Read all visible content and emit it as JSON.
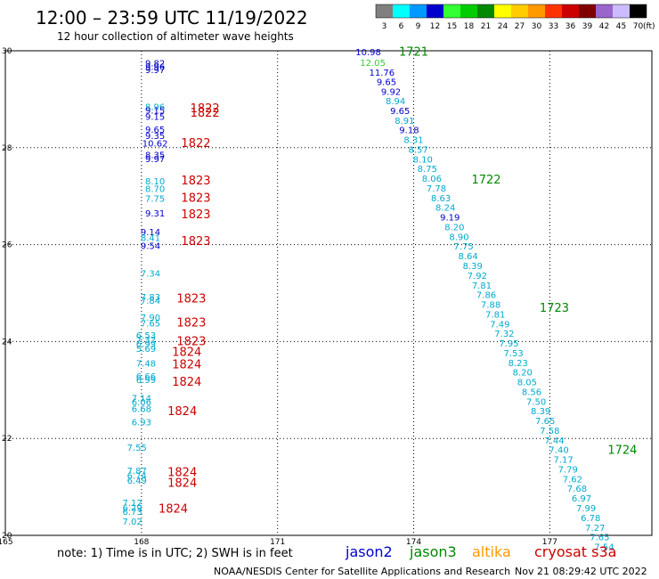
{
  "header": {
    "title": "12:00 – 23:59 UTC 11/19/2022",
    "subtitle": "12 hour collection of altimeter wave heights"
  },
  "color_scale": {
    "bins": [
      {
        "label": "3",
        "color": "#808080"
      },
      {
        "label": "6",
        "color": "#00ffff"
      },
      {
        "label": "9",
        "color": "#0099ff"
      },
      {
        "label": "12",
        "color": "#0000cc"
      },
      {
        "label": "15",
        "color": "#33ff33"
      },
      {
        "label": "18",
        "color": "#00cc00"
      },
      {
        "label": "21",
        "color": "#008800"
      },
      {
        "label": "24",
        "color": "#ffff00"
      },
      {
        "label": "27",
        "color": "#ffcc00"
      },
      {
        "label": "30",
        "color": "#ff9900"
      },
      {
        "label": "33",
        "color": "#ff3300"
      },
      {
        "label": "36",
        "color": "#cc0000"
      },
      {
        "label": "39",
        "color": "#800000"
      },
      {
        "label": "42",
        "color": "#9966cc"
      },
      {
        "label": "45",
        "color": "#ccbbff"
      },
      {
        "label": "70",
        "color": "#000000"
      }
    ],
    "unit": "(ft)"
  },
  "colors": {
    "jason2": "#0000cc",
    "jason3": "#008800",
    "altika": "#ff9900",
    "cryosat": "#cc0000",
    "light_blue": "#00aacc",
    "green_light": "#33cc33"
  },
  "axes": {
    "x_ticks": [
      "165",
      "168",
      "171",
      "174",
      "177"
    ],
    "y_ticks": [
      "30",
      "28",
      "26",
      "24",
      "22",
      "20"
    ]
  },
  "footer": {
    "note": "note: 1) Time is in UTC; 2) SWH is in feet",
    "legend": [
      {
        "label": "jason2",
        "color": "#0000cc"
      },
      {
        "label": "jason3",
        "color": "#008800"
      },
      {
        "label": "altika",
        "color": "#ff9900"
      },
      {
        "label": "cryosat s3a",
        "color": "#cc0000"
      }
    ],
    "credit": "NOAA/NESDIS Center for Satellite Applications and Research",
    "timestamp": "Nov 21 08:29:42 UTC 2022"
  },
  "track_left": {
    "labels": [
      {
        "lon": 168.3,
        "lat": 29.75,
        "value": "9.82",
        "color": "#0000cc"
      },
      {
        "lon": 168.3,
        "lat": 29.68,
        "value": "9.96",
        "color": "#0000cc"
      },
      {
        "lon": 168.3,
        "lat": 29.61,
        "value": "9.97",
        "color": "#0000cc"
      },
      {
        "lon": 168.3,
        "lat": 28.85,
        "value": "8.96",
        "color": "#00aacc"
      },
      {
        "lon": 168.3,
        "lat": 28.78,
        "value": "9.15",
        "color": "#0000cc"
      },
      {
        "lon": 168.3,
        "lat": 28.65,
        "value": "9.15",
        "color": "#0000cc"
      },
      {
        "lon": 168.3,
        "lat": 28.38,
        "value": "9.65",
        "color": "#0000cc"
      },
      {
        "lon": 168.3,
        "lat": 28.25,
        "value": "9.35",
        "color": "#0000cc"
      },
      {
        "lon": 168.3,
        "lat": 28.1,
        "value": "10.62",
        "color": "#0000cc"
      },
      {
        "lon": 168.3,
        "lat": 27.86,
        "value": "8.35",
        "color": "#0000cc"
      },
      {
        "lon": 168.3,
        "lat": 27.78,
        "value": "9.97",
        "color": "#0000cc"
      },
      {
        "lon": 168.3,
        "lat": 27.32,
        "value": "8.10",
        "color": "#00aacc"
      },
      {
        "lon": 168.3,
        "lat": 27.16,
        "value": "8.70",
        "color": "#00aacc"
      },
      {
        "lon": 168.3,
        "lat": 26.96,
        "value": "7.75",
        "color": "#00aacc"
      },
      {
        "lon": 168.3,
        "lat": 26.65,
        "value": "9.31",
        "color": "#0000cc"
      },
      {
        "lon": 168.2,
        "lat": 26.27,
        "value": "9.14",
        "color": "#0000cc"
      },
      {
        "lon": 168.2,
        "lat": 26.15,
        "value": "8.41",
        "color": "#00aacc"
      },
      {
        "lon": 168.2,
        "lat": 25.98,
        "value": "9.54",
        "color": "#0000cc"
      },
      {
        "lon": 168.2,
        "lat": 25.41,
        "value": "7.34",
        "color": "#00aacc"
      },
      {
        "lon": 168.2,
        "lat": 24.93,
        "value": "7.83",
        "color": "#00aacc"
      },
      {
        "lon": 168.2,
        "lat": 24.85,
        "value": "7.84",
        "color": "#00aacc"
      },
      {
        "lon": 168.2,
        "lat": 24.5,
        "value": "7.90",
        "color": "#00aacc"
      },
      {
        "lon": 168.2,
        "lat": 24.38,
        "value": "7.65",
        "color": "#00aacc"
      },
      {
        "lon": 168.1,
        "lat": 24.14,
        "value": "6.53",
        "color": "#00aacc"
      },
      {
        "lon": 168.1,
        "lat": 24.04,
        "value": "7.32",
        "color": "#00aacc"
      },
      {
        "lon": 168.1,
        "lat": 23.96,
        "value": "6.99",
        "color": "#00aacc"
      },
      {
        "lon": 168.1,
        "lat": 23.86,
        "value": "5.69",
        "color": "#00aacc"
      },
      {
        "lon": 168.1,
        "lat": 23.56,
        "value": "7.48",
        "color": "#00aacc"
      },
      {
        "lon": 168.1,
        "lat": 23.29,
        "value": "6.66",
        "color": "#00aacc"
      },
      {
        "lon": 168.1,
        "lat": 23.22,
        "value": "6.99",
        "color": "#00aacc"
      },
      {
        "lon": 168.0,
        "lat": 22.84,
        "value": "7.14",
        "color": "#00aacc"
      },
      {
        "lon": 168.0,
        "lat": 22.76,
        "value": "6.06",
        "color": "#00aacc"
      },
      {
        "lon": 168.0,
        "lat": 22.62,
        "value": "6.68",
        "color": "#00aacc"
      },
      {
        "lon": 168.0,
        "lat": 22.34,
        "value": "6.93",
        "color": "#00aacc"
      },
      {
        "lon": 167.9,
        "lat": 21.82,
        "value": "7.55",
        "color": "#00aacc"
      },
      {
        "lon": 167.9,
        "lat": 21.34,
        "value": "7.87",
        "color": "#00aacc"
      },
      {
        "lon": 167.9,
        "lat": 21.24,
        "value": "6.74",
        "color": "#00aacc"
      },
      {
        "lon": 167.9,
        "lat": 21.14,
        "value": "6.49",
        "color": "#00aacc"
      },
      {
        "lon": 167.8,
        "lat": 20.68,
        "value": "7.12",
        "color": "#00aacc"
      },
      {
        "lon": 167.8,
        "lat": 20.58,
        "value": "6.29",
        "color": "#00aacc"
      },
      {
        "lon": 167.8,
        "lat": 20.5,
        "value": "6.73",
        "color": "#00aacc"
      },
      {
        "lon": 167.8,
        "lat": 20.29,
        "value": "7.02",
        "color": "#00aacc"
      }
    ],
    "times": [
      {
        "lon": 169.4,
        "lat": 28.82,
        "value": "1822",
        "color": "#cc0000"
      },
      {
        "lon": 169.4,
        "lat": 28.73,
        "value": "1822",
        "color": "#cc0000"
      },
      {
        "lon": 169.2,
        "lat": 28.11,
        "value": "1822",
        "color": "#cc0000"
      },
      {
        "lon": 169.2,
        "lat": 27.33,
        "value": "1823",
        "color": "#cc0000"
      },
      {
        "lon": 169.2,
        "lat": 26.98,
        "value": "1823",
        "color": "#cc0000"
      },
      {
        "lon": 169.2,
        "lat": 26.64,
        "value": "1823",
        "color": "#cc0000"
      },
      {
        "lon": 169.2,
        "lat": 26.08,
        "value": "1823",
        "color": "#cc0000"
      },
      {
        "lon": 169.1,
        "lat": 24.9,
        "value": "1823",
        "color": "#cc0000"
      },
      {
        "lon": 169.1,
        "lat": 24.4,
        "value": "1823",
        "color": "#cc0000"
      },
      {
        "lon": 169.1,
        "lat": 24.02,
        "value": "1823",
        "color": "#cc0000"
      },
      {
        "lon": 169.0,
        "lat": 23.8,
        "value": "1824",
        "color": "#cc0000"
      },
      {
        "lon": 169.0,
        "lat": 23.54,
        "value": "1824",
        "color": "#cc0000"
      },
      {
        "lon": 169.0,
        "lat": 23.18,
        "value": "1824",
        "color": "#cc0000"
      },
      {
        "lon": 168.9,
        "lat": 22.57,
        "value": "1824",
        "color": "#cc0000"
      },
      {
        "lon": 168.9,
        "lat": 21.31,
        "value": "1824",
        "color": "#cc0000"
      },
      {
        "lon": 168.9,
        "lat": 21.09,
        "value": "1824",
        "color": "#cc0000"
      },
      {
        "lon": 168.7,
        "lat": 20.56,
        "value": "1824",
        "color": "#cc0000"
      }
    ]
  },
  "track_right": {
    "labels": [
      {
        "lon": 173.0,
        "lat": 29.98,
        "value": "10.98",
        "color": "#0000cc"
      },
      {
        "lon": 173.1,
        "lat": 29.76,
        "value": "12.05",
        "color": "#33cc33"
      },
      {
        "lon": 173.3,
        "lat": 29.56,
        "value": "11.76",
        "color": "#0000cc"
      },
      {
        "lon": 173.4,
        "lat": 29.37,
        "value": "9.65",
        "color": "#0000cc"
      },
      {
        "lon": 173.5,
        "lat": 29.16,
        "value": "9.92",
        "color": "#0000cc"
      },
      {
        "lon": 173.6,
        "lat": 28.97,
        "value": "8.94",
        "color": "#00aacc"
      },
      {
        "lon": 173.7,
        "lat": 28.77,
        "value": "9.65",
        "color": "#0000cc"
      },
      {
        "lon": 173.8,
        "lat": 28.57,
        "value": "8.91",
        "color": "#00aacc"
      },
      {
        "lon": 173.9,
        "lat": 28.37,
        "value": "9.18",
        "color": "#0000cc"
      },
      {
        "lon": 174.0,
        "lat": 28.17,
        "value": "8.31",
        "color": "#00aacc"
      },
      {
        "lon": 174.1,
        "lat": 27.97,
        "value": "8.57",
        "color": "#00aacc"
      },
      {
        "lon": 174.2,
        "lat": 27.77,
        "value": "8.10",
        "color": "#00aacc"
      },
      {
        "lon": 174.3,
        "lat": 27.57,
        "value": "8.75",
        "color": "#00aacc"
      },
      {
        "lon": 174.4,
        "lat": 27.37,
        "value": "8.06",
        "color": "#00aacc"
      },
      {
        "lon": 174.5,
        "lat": 27.17,
        "value": "7.78",
        "color": "#00aacc"
      },
      {
        "lon": 174.6,
        "lat": 26.97,
        "value": "8.63",
        "color": "#00aacc"
      },
      {
        "lon": 174.7,
        "lat": 26.77,
        "value": "8.24",
        "color": "#00aacc"
      },
      {
        "lon": 174.8,
        "lat": 26.57,
        "value": "9.19",
        "color": "#0000cc"
      },
      {
        "lon": 174.9,
        "lat": 26.37,
        "value": "8.20",
        "color": "#00aacc"
      },
      {
        "lon": 175.0,
        "lat": 26.17,
        "value": "8.90",
        "color": "#00aacc"
      },
      {
        "lon": 175.1,
        "lat": 25.97,
        "value": "7.75",
        "color": "#00aacc"
      },
      {
        "lon": 175.2,
        "lat": 25.77,
        "value": "8.64",
        "color": "#00aacc"
      },
      {
        "lon": 175.3,
        "lat": 25.57,
        "value": "8.39",
        "color": "#00aacc"
      },
      {
        "lon": 175.4,
        "lat": 25.37,
        "value": "7.92",
        "color": "#00aacc"
      },
      {
        "lon": 175.5,
        "lat": 25.17,
        "value": "7.81",
        "color": "#00aacc"
      },
      {
        "lon": 175.6,
        "lat": 24.97,
        "value": "7.86",
        "color": "#00aacc"
      },
      {
        "lon": 175.7,
        "lat": 24.77,
        "value": "7.88",
        "color": "#00aacc"
      },
      {
        "lon": 175.8,
        "lat": 24.57,
        "value": "7.81",
        "color": "#00aacc"
      },
      {
        "lon": 175.9,
        "lat": 24.37,
        "value": "7.49",
        "color": "#00aacc"
      },
      {
        "lon": 176.0,
        "lat": 24.17,
        "value": "7.32",
        "color": "#00aacc"
      },
      {
        "lon": 176.1,
        "lat": 23.97,
        "value": "7.95",
        "color": "#00aacc"
      },
      {
        "lon": 176.2,
        "lat": 23.77,
        "value": "7.53",
        "color": "#00aacc"
      },
      {
        "lon": 176.3,
        "lat": 23.57,
        "value": "8.23",
        "color": "#00aacc"
      },
      {
        "lon": 176.4,
        "lat": 23.37,
        "value": "8.20",
        "color": "#00aacc"
      },
      {
        "lon": 176.5,
        "lat": 23.17,
        "value": "8.05",
        "color": "#00aacc"
      },
      {
        "lon": 176.6,
        "lat": 22.97,
        "value": "8.56",
        "color": "#00aacc"
      },
      {
        "lon": 176.7,
        "lat": 22.77,
        "value": "7.50",
        "color": "#00aacc"
      },
      {
        "lon": 176.8,
        "lat": 22.57,
        "value": "8.39",
        "color": "#00aacc"
      },
      {
        "lon": 176.9,
        "lat": 22.37,
        "value": "7.65",
        "color": "#00aacc"
      },
      {
        "lon": 177.0,
        "lat": 22.17,
        "value": "7.58",
        "color": "#00aacc"
      },
      {
        "lon": 177.1,
        "lat": 21.97,
        "value": "7.44",
        "color": "#00aacc"
      },
      {
        "lon": 177.2,
        "lat": 21.77,
        "value": "7.40",
        "color": "#00aacc"
      },
      {
        "lon": 177.3,
        "lat": 21.57,
        "value": "7.17",
        "color": "#00aacc"
      },
      {
        "lon": 177.4,
        "lat": 21.37,
        "value": "7.79",
        "color": "#00aacc"
      },
      {
        "lon": 177.5,
        "lat": 21.17,
        "value": "7.62",
        "color": "#00aacc"
      },
      {
        "lon": 177.6,
        "lat": 20.97,
        "value": "7.68",
        "color": "#00aacc"
      },
      {
        "lon": 177.7,
        "lat": 20.77,
        "value": "6.97",
        "color": "#00aacc"
      },
      {
        "lon": 177.8,
        "lat": 20.57,
        "value": "7.99",
        "color": "#00aacc"
      },
      {
        "lon": 177.9,
        "lat": 20.37,
        "value": "6.78",
        "color": "#00aacc"
      },
      {
        "lon": 178.0,
        "lat": 20.17,
        "value": "7.27",
        "color": "#00aacc"
      },
      {
        "lon": 178.1,
        "lat": 19.97,
        "value": "7.65",
        "color": "#00aacc"
      },
      {
        "lon": 178.2,
        "lat": 19.77,
        "value": "7.54",
        "color": "#00aacc"
      }
    ],
    "times": [
      {
        "lon": 174.0,
        "lat": 29.99,
        "value": "1721",
        "color": "#008800"
      },
      {
        "lon": 175.6,
        "lat": 27.35,
        "value": "1722",
        "color": "#008800"
      },
      {
        "lon": 177.1,
        "lat": 24.71,
        "value": "1723",
        "color": "#008800"
      },
      {
        "lon": 178.6,
        "lat": 21.77,
        "value": "1724",
        "color": "#008800"
      }
    ]
  }
}
